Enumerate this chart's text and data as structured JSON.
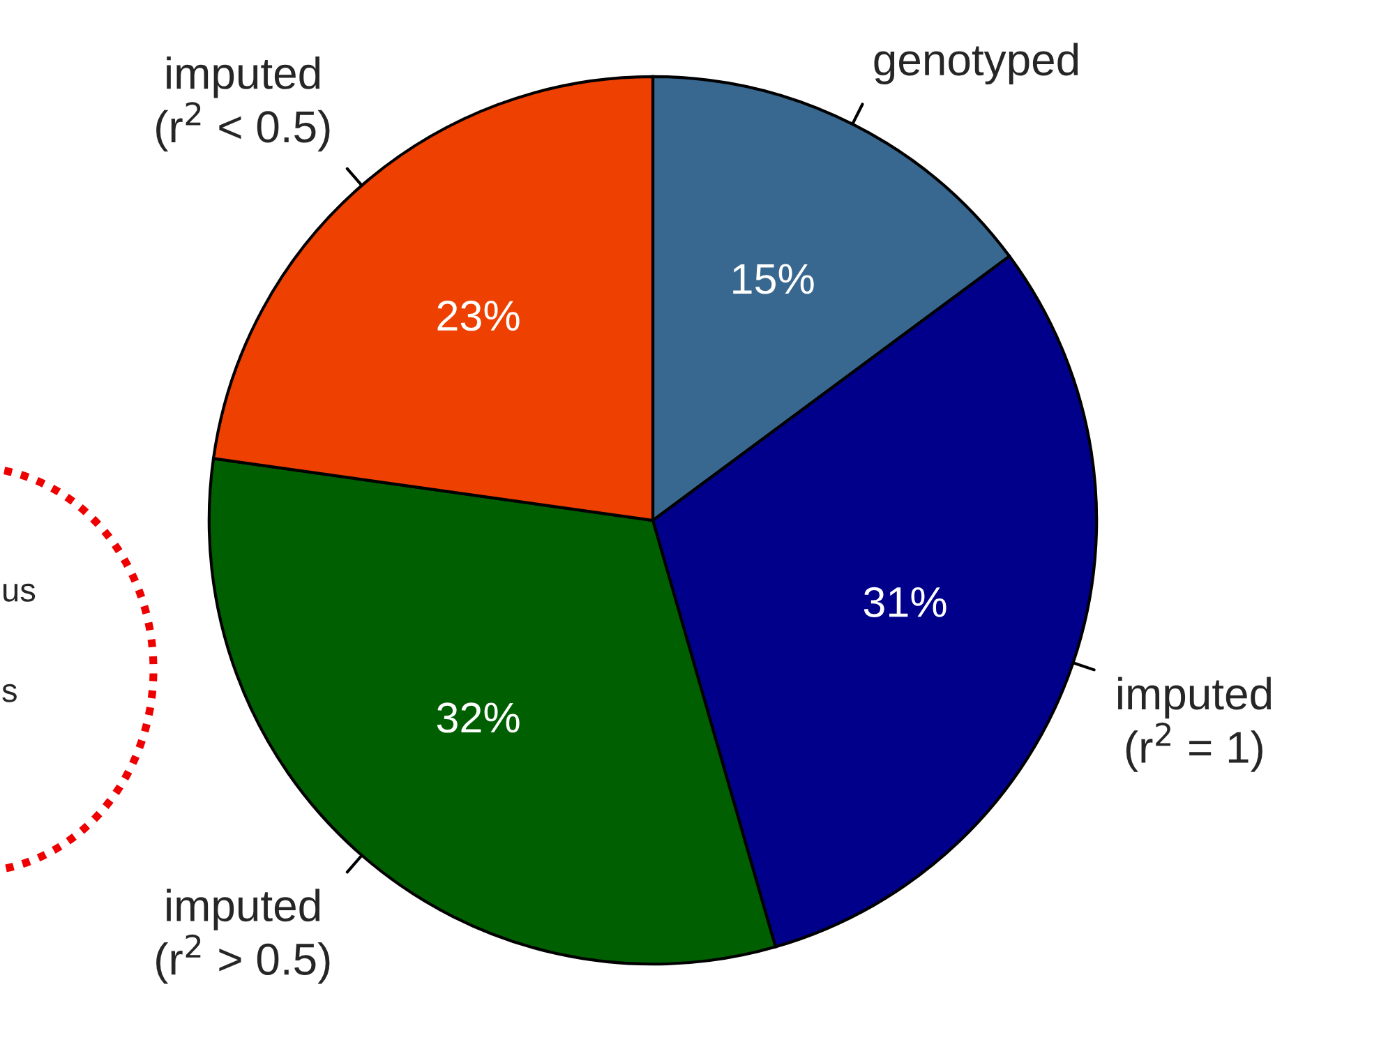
{
  "chart_data": {
    "type": "pie",
    "categories": [
      "genotyped",
      "imputed\n(r$^{2}$ = 1)",
      "imputed\n(r$^{2}$ > 0.5)",
      "imputed\n(r$^{2}$ < 0.5)"
    ],
    "values": [
      15,
      31,
      32,
      23
    ],
    "colors": [
      "#386890",
      "#00008b",
      "#005f00",
      "#ee4000"
    ],
    "value_labels": [
      "15%",
      "31%",
      "32%",
      "23%"
    ],
    "annotations": [
      "us",
      "s"
    ]
  }
}
